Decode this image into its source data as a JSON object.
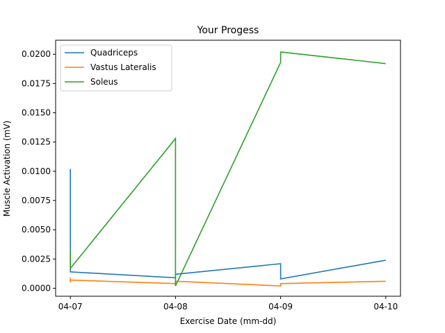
{
  "chart_data": {
    "type": "line",
    "title": "Your Progess",
    "xlabel": "Exercise Date (mm-dd)",
    "ylabel": "Muscle Activation (mV)",
    "x_ticks": [
      "04-07",
      "04-08",
      "04-09",
      "04-10"
    ],
    "y_ticks": [
      "0.0000",
      "0.0025",
      "0.0050",
      "0.0075",
      "0.0100",
      "0.0125",
      "0.0150",
      "0.0175",
      "0.0200"
    ],
    "xlim": [
      -0.14,
      3.14
    ],
    "ylim": [
      -0.00068,
      0.0212
    ],
    "legend_position": "upper-left",
    "series": [
      {
        "name": "Quadriceps",
        "color": "#1f77b4",
        "points": [
          [
            0,
            0.0102
          ],
          [
            0,
            0.0016
          ],
          [
            0,
            0.0014
          ],
          [
            1,
            0.0009
          ],
          [
            1,
            0.0012
          ],
          [
            2,
            0.0021
          ],
          [
            2,
            0.0008
          ],
          [
            3,
            0.0024
          ]
        ]
      },
      {
        "name": "Vastus Lateralis",
        "color": "#ff7f0e",
        "points": [
          [
            0,
            0.0005
          ],
          [
            0,
            0.0009
          ],
          [
            0,
            0.0007
          ],
          [
            1,
            0.0004
          ],
          [
            1,
            0.0006
          ],
          [
            2,
            0.0002
          ],
          [
            2,
            0.0004
          ],
          [
            3,
            0.0006
          ]
        ]
      },
      {
        "name": "Soleus",
        "color": "#2ca02c",
        "points": [
          [
            0,
            0.0032
          ],
          [
            0,
            0.0017
          ],
          [
            1,
            0.0128
          ],
          [
            1,
            0.0002
          ],
          [
            2,
            0.0193
          ],
          [
            2,
            0.0202
          ],
          [
            3,
            0.0192
          ]
        ]
      }
    ]
  }
}
